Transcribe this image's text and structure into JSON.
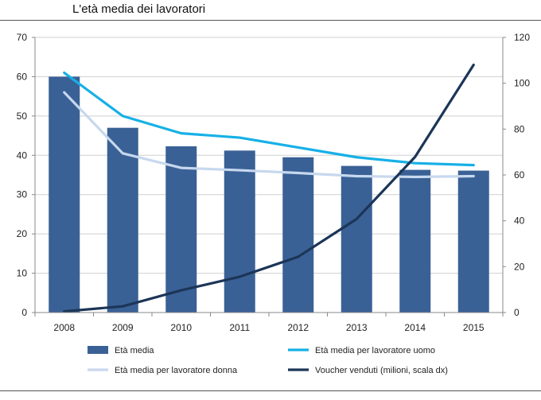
{
  "title": "L'età media dei lavoratori",
  "chart_data": {
    "type": "bar",
    "title": "L'età media dei lavoratori",
    "categories": [
      "2008",
      "2009",
      "2010",
      "2011",
      "2012",
      "2013",
      "2014",
      "2015"
    ],
    "y_left": {
      "min": 0,
      "max": 70,
      "ticks": [
        0,
        10,
        20,
        30,
        40,
        50,
        60,
        70
      ]
    },
    "y_right": {
      "min": 0,
      "max": 120,
      "ticks": [
        0,
        20,
        40,
        60,
        80,
        100,
        120
      ]
    },
    "grid": true,
    "legend_position": "bottom",
    "series": [
      {
        "name": "Età media",
        "kind": "bar",
        "axis": "left",
        "color": "#3a6196",
        "values": [
          60.0,
          47.0,
          42.3,
          41.2,
          39.5,
          37.3,
          36.3,
          36.1
        ]
      },
      {
        "name": "Età media per lavoratore uomo",
        "kind": "line",
        "axis": "left",
        "color": "#16b0e6",
        "values": [
          61.0,
          50.0,
          45.6,
          44.5,
          42.0,
          39.5,
          38.0,
          37.5
        ]
      },
      {
        "name": "Età media per lavoratore donna",
        "kind": "line",
        "axis": "left",
        "color": "#c7d8ee",
        "values": [
          56.0,
          40.5,
          36.8,
          36.2,
          35.5,
          34.7,
          34.5,
          34.7
        ]
      },
      {
        "name": "Voucher venduti (milioni, scala dx)",
        "kind": "line",
        "axis": "right",
        "color": "#1c3557",
        "values": [
          0.5,
          2.7,
          9.7,
          15.6,
          24.3,
          40.8,
          67.9,
          108.0
        ]
      }
    ]
  }
}
